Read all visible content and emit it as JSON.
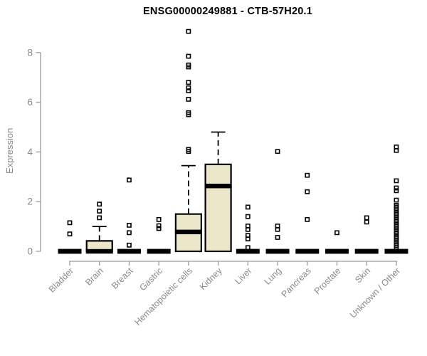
{
  "chart_data": {
    "type": "boxplot",
    "title": "ENSG00000249881 - CTB-57H20.1",
    "ylabel": "Expression",
    "xlabel": "",
    "ylim": [
      0,
      8.9
    ],
    "yticks": [
      0,
      2,
      4,
      6,
      8
    ],
    "grid": false,
    "legend": "none",
    "box_fill": "#ece6cb",
    "box_stroke": "#000000",
    "axis_color": "#9a9a9a",
    "text_color": "#8a8a8a",
    "title_color": "#000000",
    "categories": [
      "Bladder",
      "Brain",
      "Breast",
      "Gastric",
      "Hematopoietic cells",
      "Kidney",
      "Liver",
      "Lung",
      "Pancreas",
      "Prostate",
      "Skin",
      "Unknown / Other"
    ],
    "series": [
      {
        "name": "Bladder",
        "q1": 0,
        "median": 0,
        "q3": 0,
        "whisker_low": 0,
        "whisker_high": 0,
        "outliers": [
          1.15,
          0.7
        ]
      },
      {
        "name": "Brain",
        "q1": 0,
        "median": 0,
        "q3": 0.42,
        "whisker_low": 0,
        "whisker_high": 1.0,
        "outliers": [
          1.9,
          1.62,
          1.35
        ]
      },
      {
        "name": "Breast",
        "q1": 0,
        "median": 0,
        "q3": 0,
        "whisker_low": 0,
        "whisker_high": 0,
        "outliers": [
          2.87,
          1.05,
          0.75,
          0.25
        ]
      },
      {
        "name": "Gastric",
        "q1": 0,
        "median": 0,
        "q3": 0,
        "whisker_low": 0,
        "whisker_high": 0,
        "outliers": [
          1.28,
          1.03,
          0.92
        ]
      },
      {
        "name": "Hematopoietic cells",
        "q1": 0,
        "median": 0.78,
        "q3": 1.5,
        "whisker_low": 0,
        "whisker_high": 3.45,
        "outliers": [
          8.85,
          7.85,
          7.5,
          7.42,
          6.8,
          6.58,
          6.46,
          6.12,
          5.58,
          5.5,
          4.1,
          4.02
        ]
      },
      {
        "name": "Kidney",
        "q1": 0,
        "median": 2.63,
        "q3": 3.5,
        "whisker_low": 0,
        "whisker_high": 4.8,
        "outliers": []
      },
      {
        "name": "Liver",
        "q1": 0,
        "median": 0,
        "q3": 0,
        "whisker_low": 0,
        "whisker_high": 0,
        "outliers": [
          1.78,
          1.4,
          1.02,
          0.88,
          0.64,
          0.5,
          0.15
        ]
      },
      {
        "name": "Lung",
        "q1": 0,
        "median": 0,
        "q3": 0,
        "whisker_low": 0,
        "whisker_high": 0,
        "outliers": [
          4.02,
          1.02,
          0.88,
          0.56
        ]
      },
      {
        "name": "Pancreas",
        "q1": 0,
        "median": 0,
        "q3": 0,
        "whisker_low": 0,
        "whisker_high": 0,
        "outliers": [
          3.06,
          2.4,
          1.28
        ]
      },
      {
        "name": "Prostate",
        "q1": 0,
        "median": 0,
        "q3": 0,
        "whisker_low": 0,
        "whisker_high": 0,
        "outliers": [
          0.75
        ]
      },
      {
        "name": "Skin",
        "q1": 0,
        "median": 0,
        "q3": 0,
        "whisker_low": 0,
        "whisker_high": 0,
        "outliers": [
          1.35,
          1.18
        ]
      },
      {
        "name": "Unknown / Other",
        "q1": 0,
        "median": 0,
        "q3": 0,
        "whisker_low": 0,
        "whisker_high": 0,
        "outliers": [
          4.2,
          4.06,
          2.84,
          2.55,
          2.44,
          2.06,
          1.85,
          1.78,
          1.71,
          1.64,
          1.57,
          1.5,
          1.43,
          1.36,
          1.29,
          1.22,
          1.15,
          1.08,
          1.01,
          0.94,
          0.87,
          0.8,
          0.73,
          0.66,
          0.59,
          0.52,
          0.45,
          0.38,
          0.31,
          0.24,
          0.17
        ]
      }
    ]
  }
}
